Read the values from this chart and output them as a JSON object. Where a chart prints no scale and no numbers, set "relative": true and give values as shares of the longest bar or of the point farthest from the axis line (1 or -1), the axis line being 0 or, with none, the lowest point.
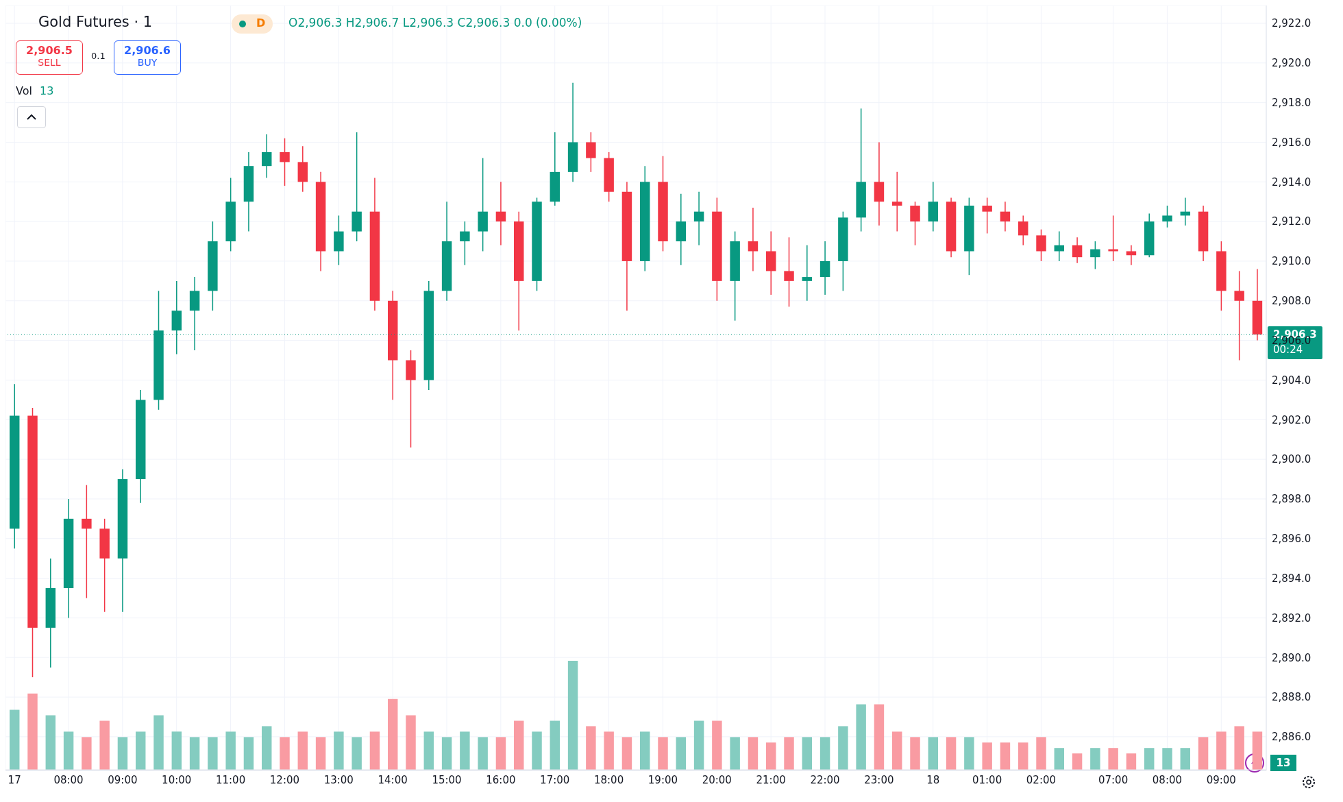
{
  "chart_data": [
    {
      "type": "candlestick",
      "title": "Gold Futures · 1",
      "categories": [
        "17",
        null,
        null,
        "08:00",
        null,
        null,
        "09:00",
        null,
        null,
        "10:00",
        null,
        null,
        "11:00",
        null,
        null,
        "12:00",
        null,
        null,
        "13:00",
        null,
        null,
        "14:00",
        null,
        null,
        "15:00",
        null,
        null,
        "16:00",
        null,
        null,
        "17:00",
        null,
        null,
        "18:00",
        null,
        null,
        "19:00",
        null,
        null,
        "20:00",
        null,
        null,
        "21:00",
        null,
        null,
        "22:00",
        null,
        null,
        "23:00",
        null,
        null,
        "18",
        null,
        null,
        "01:00",
        null,
        null,
        "02:00",
        null,
        null,
        null,
        "07:00",
        null,
        null,
        "08:00",
        null,
        null,
        "09:00",
        null,
        null
      ],
      "ohlc": [
        [
          2896.5,
          2903.8,
          2895.5,
          2902.2
        ],
        [
          2902.2,
          2902.6,
          2889.0,
          2891.5
        ],
        [
          2891.5,
          2895.0,
          2889.5,
          2893.5
        ],
        [
          2893.5,
          2898.0,
          2892.0,
          2897.0
        ],
        [
          2897.0,
          2898.7,
          2893.0,
          2896.5
        ],
        [
          2896.5,
          2897.0,
          2892.3,
          2895.0
        ],
        [
          2895.0,
          2899.5,
          2892.3,
          2899.0
        ],
        [
          2899.0,
          2903.5,
          2897.8,
          2903.0
        ],
        [
          2903.0,
          2908.5,
          2902.5,
          2906.5
        ],
        [
          2906.5,
          2909.0,
          2905.3,
          2907.5
        ],
        [
          2907.5,
          2909.2,
          2905.5,
          2908.5
        ],
        [
          2908.5,
          2912.0,
          2907.5,
          2911.0
        ],
        [
          2911.0,
          2914.2,
          2910.5,
          2913.0
        ],
        [
          2913.0,
          2915.5,
          2911.5,
          2914.8
        ],
        [
          2914.8,
          2916.4,
          2914.2,
          2915.5
        ],
        [
          2915.5,
          2916.2,
          2913.8,
          2915.0
        ],
        [
          2915.0,
          2915.8,
          2913.5,
          2914.0
        ],
        [
          2914.0,
          2914.5,
          2909.5,
          2910.5
        ],
        [
          2910.5,
          2912.3,
          2909.8,
          2911.5
        ],
        [
          2911.5,
          2916.5,
          2911.0,
          2912.5
        ],
        [
          2912.5,
          2914.2,
          2907.5,
          2908.0
        ],
        [
          2908.0,
          2908.5,
          2903.0,
          2905.0
        ],
        [
          2905.0,
          2905.5,
          2900.6,
          2904.0
        ],
        [
          2904.0,
          2909.0,
          2903.5,
          2908.5
        ],
        [
          2908.5,
          2913.0,
          2908.0,
          2911.0
        ],
        [
          2911.0,
          2912.0,
          2909.8,
          2911.5
        ],
        [
          2911.5,
          2915.2,
          2910.5,
          2912.5
        ],
        [
          2912.5,
          2914.0,
          2910.8,
          2912.0
        ],
        [
          2912.0,
          2912.5,
          2906.5,
          2909.0
        ],
        [
          2909.0,
          2913.2,
          2908.5,
          2913.0
        ],
        [
          2913.0,
          2916.5,
          2912.8,
          2914.5
        ],
        [
          2914.5,
          2919.0,
          2914.0,
          2916.0
        ],
        [
          2916.0,
          2916.5,
          2914.5,
          2915.2
        ],
        [
          2915.2,
          2915.5,
          2913.0,
          2913.5
        ],
        [
          2913.5,
          2914.0,
          2907.5,
          2910.0
        ],
        [
          2910.0,
          2914.8,
          2909.5,
          2914.0
        ],
        [
          2914.0,
          2915.3,
          2910.5,
          2911.0
        ],
        [
          2911.0,
          2913.4,
          2909.8,
          2912.0
        ],
        [
          2912.0,
          2913.5,
          2910.8,
          2912.5
        ],
        [
          2912.5,
          2913.2,
          2908.0,
          2909.0
        ],
        [
          2909.0,
          2911.5,
          2907.0,
          2911.0
        ],
        [
          2911.0,
          2912.7,
          2909.5,
          2910.5
        ],
        [
          2910.5,
          2911.5,
          2908.3,
          2909.5
        ],
        [
          2909.5,
          2911.2,
          2907.7,
          2909.0
        ],
        [
          2909.0,
          2910.8,
          2908.0,
          2909.2
        ],
        [
          2909.2,
          2911.0,
          2908.3,
          2910.0
        ],
        [
          2910.0,
          2912.5,
          2908.5,
          2912.2
        ],
        [
          2912.2,
          2917.7,
          2911.5,
          2914.0
        ],
        [
          2914.0,
          2916.0,
          2911.8,
          2913.0
        ],
        [
          2913.0,
          2914.5,
          2911.5,
          2912.8
        ],
        [
          2912.8,
          2913.0,
          2910.8,
          2912.0
        ],
        [
          2912.0,
          2914.0,
          2911.5,
          2913.0
        ],
        [
          2913.0,
          2913.2,
          2910.2,
          2910.5
        ],
        [
          2910.5,
          2913.2,
          2909.3,
          2912.8
        ],
        [
          2912.8,
          2913.2,
          2911.4,
          2912.5
        ],
        [
          2912.5,
          2913.0,
          2911.5,
          2912.0
        ],
        [
          2912.0,
          2912.3,
          2910.8,
          2911.3
        ],
        [
          2911.3,
          2911.6,
          2910.0,
          2910.5
        ],
        [
          2910.5,
          2911.5,
          2910.0,
          2910.8
        ],
        [
          2910.8,
          2911.2,
          2909.9,
          2910.2
        ],
        [
          2910.2,
          2911.0,
          2909.6,
          2910.6
        ],
        [
          2910.6,
          2912.3,
          2910.0,
          2910.5
        ],
        [
          2910.5,
          2910.8,
          2909.8,
          2910.3
        ],
        [
          2910.3,
          2912.4,
          2910.2,
          2912.0
        ],
        [
          2912.0,
          2912.8,
          2911.7,
          2912.3
        ],
        [
          2912.3,
          2913.2,
          2911.8,
          2912.5
        ],
        [
          2912.5,
          2912.8,
          2910.0,
          2910.5
        ],
        [
          2910.5,
          2911.0,
          2907.5,
          2908.5
        ],
        [
          2908.5,
          2909.5,
          2905.0,
          2908.0
        ],
        [
          2908.0,
          2909.6,
          2906.0,
          2906.3
        ]
      ],
      "colors": [
        "#089981",
        "#f23645",
        "#089981",
        "#089981",
        "#f23645",
        "#f23645",
        "#089981",
        "#089981",
        "#089981",
        "#089981",
        "#089981",
        "#089981",
        "#089981",
        "#089981",
        "#089981",
        "#f23645",
        "#f23645",
        "#f23645",
        "#089981",
        "#089981",
        "#f23645",
        "#f23645",
        "#f23645",
        "#089981",
        "#089981",
        "#089981",
        "#089981",
        "#f23645",
        "#f23645",
        "#089981",
        "#089981",
        "#089981",
        "#f23645",
        "#f23645",
        "#f23645",
        "#089981",
        "#f23645",
        "#089981",
        "#089981",
        "#f23645",
        "#089981",
        "#f23645",
        "#f23645",
        "#f23645",
        "#089981",
        "#089981",
        "#089981",
        "#089981",
        "#f23645",
        "#f23645",
        "#f23645",
        "#089981",
        "#f23645",
        "#089981",
        "#f23645",
        "#f23645",
        "#f23645",
        "#f23645",
        "#089981",
        "#f23645",
        "#089981",
        "#f23645",
        "#f23645",
        "#089981",
        "#089981",
        "#089981",
        "#f23645",
        "#f23645",
        "#f23645",
        "#f23645"
      ],
      "ylim": [
        2884.3,
        2922.9
      ],
      "yticks": [
        {
          "value": 2886,
          "label": "2,886.0"
        },
        {
          "value": 2888,
          "label": "2,888.0"
        },
        {
          "value": 2890,
          "label": "2,890.0"
        },
        {
          "value": 2892,
          "label": "2,892.0"
        },
        {
          "value": 2894,
          "label": "2,894.0"
        },
        {
          "value": 2896,
          "label": "2,896.0"
        },
        {
          "value": 2898,
          "label": "2,898.0"
        },
        {
          "value": 2900,
          "label": "2,900.0"
        },
        {
          "value": 2902,
          "label": "2,902.0"
        },
        {
          "value": 2904,
          "label": "2,904.0"
        },
        {
          "value": 2906,
          "label": "2,906.0"
        },
        {
          "value": 2908,
          "label": "2,908.0"
        },
        {
          "value": 2910,
          "label": "2,910.0"
        },
        {
          "value": 2912,
          "label": "2,912.0"
        },
        {
          "value": 2914,
          "label": "2,914.0"
        },
        {
          "value": 2916,
          "label": "2,916.0"
        },
        {
          "value": 2918,
          "label": "2,918.0"
        },
        {
          "value": 2920,
          "label": "2,920.0"
        },
        {
          "value": 2922,
          "label": "2,922.0"
        }
      ],
      "grid": true,
      "ref_lines": [
        {
          "axis": "y",
          "value": 2906.3,
          "label": "2,906.3",
          "color": "#089981",
          "line_style": "dotted"
        }
      ],
      "annotations": [
        "D",
        "O2,906.3 H2,906.7 L2,906.3 C2,906.3 0.0 (0.00%)",
        "2,906.5",
        "SELL",
        "0.1",
        "2,906.6",
        "BUY",
        "Vol",
        "13",
        "00:24",
        "13"
      ]
    },
    {
      "type": "bar",
      "relative": true,
      "categories": [
        null,
        null,
        null,
        null,
        null,
        null,
        null,
        null,
        null,
        null,
        null,
        null,
        null,
        null,
        null,
        null,
        null,
        null,
        null,
        null,
        null,
        null,
        null,
        null,
        null,
        null,
        null,
        null,
        null,
        null,
        null,
        null,
        null,
        null,
        null,
        null,
        null,
        null,
        null,
        null,
        null,
        null,
        null,
        null,
        null,
        null,
        null,
        null,
        null,
        null,
        null,
        null,
        null,
        null,
        null,
        null,
        null,
        null,
        null,
        null,
        null,
        null,
        null,
        null,
        null,
        null,
        null,
        null,
        null,
        null
      ],
      "values": [
        0.55,
        0.7,
        0.5,
        0.35,
        0.3,
        0.45,
        0.3,
        0.35,
        0.5,
        0.35,
        0.3,
        0.3,
        0.35,
        0.3,
        0.4,
        0.3,
        0.35,
        0.3,
        0.35,
        0.3,
        0.35,
        0.65,
        0.5,
        0.35,
        0.3,
        0.35,
        0.3,
        0.3,
        0.45,
        0.35,
        0.45,
        1,
        0.4,
        0.35,
        0.3,
        0.35,
        0.3,
        0.3,
        0.45,
        0.45,
        0.3,
        0.3,
        0.25,
        0.3,
        0.3,
        0.3,
        0.4,
        0.6,
        0.6,
        0.35,
        0.3,
        0.3,
        0.3,
        0.3,
        0.25,
        0.25,
        0.25,
        0.3,
        0.2,
        0.15,
        0.2,
        0.2,
        0.15,
        0.2,
        0.2,
        0.2,
        0.3,
        0.35,
        0.4,
        0.35
      ],
      "colors": [
        "#84ccc0",
        "#f99ba2",
        "#84ccc0",
        "#84ccc0",
        "#f99ba2",
        "#f99ba2",
        "#84ccc0",
        "#84ccc0",
        "#84ccc0",
        "#84ccc0",
        "#84ccc0",
        "#84ccc0",
        "#84ccc0",
        "#84ccc0",
        "#84ccc0",
        "#f99ba2",
        "#f99ba2",
        "#f99ba2",
        "#84ccc0",
        "#84ccc0",
        "#f99ba2",
        "#f99ba2",
        "#f99ba2",
        "#84ccc0",
        "#84ccc0",
        "#84ccc0",
        "#84ccc0",
        "#f99ba2",
        "#f99ba2",
        "#84ccc0",
        "#84ccc0",
        "#84ccc0",
        "#f99ba2",
        "#f99ba2",
        "#f99ba2",
        "#84ccc0",
        "#f99ba2",
        "#84ccc0",
        "#84ccc0",
        "#f99ba2",
        "#84ccc0",
        "#f99ba2",
        "#f99ba2",
        "#f99ba2",
        "#84ccc0",
        "#84ccc0",
        "#84ccc0",
        "#84ccc0",
        "#f99ba2",
        "#f99ba2",
        "#f99ba2",
        "#84ccc0",
        "#f99ba2",
        "#84ccc0",
        "#f99ba2",
        "#f99ba2",
        "#f99ba2",
        "#f99ba2",
        "#84ccc0",
        "#f99ba2",
        "#84ccc0",
        "#f99ba2",
        "#f99ba2",
        "#84ccc0",
        "#84ccc0",
        "#84ccc0",
        "#f99ba2",
        "#f99ba2",
        "#f99ba2",
        "#f99ba2"
      ]
    }
  ]
}
